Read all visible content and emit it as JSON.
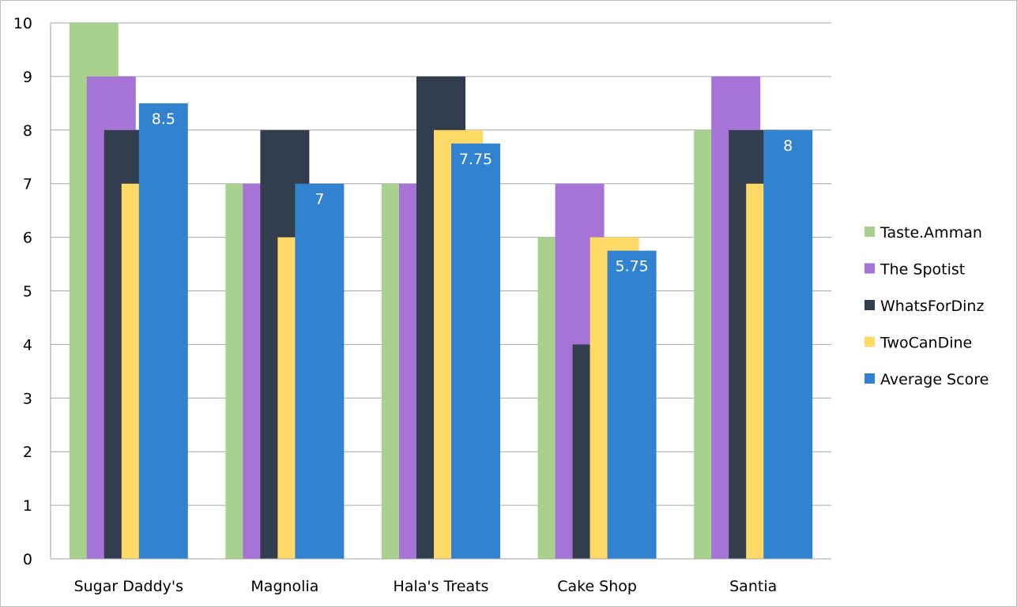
{
  "chart_data": {
    "type": "bar",
    "categories": [
      "Sugar Daddy's",
      "Magnolia",
      "Hala's Treats",
      "Cake Shop",
      "Santia"
    ],
    "series": [
      {
        "name": "Taste.Amman",
        "color": "#a9d18e",
        "values": [
          10,
          7,
          7,
          6,
          8
        ]
      },
      {
        "name": "The Spotist",
        "color": "#a574d6",
        "values": [
          9,
          7,
          7,
          7,
          9
        ]
      },
      {
        "name": "WhatsForDinz",
        "color": "#323d4d",
        "values": [
          8,
          8,
          9,
          4,
          8
        ]
      },
      {
        "name": "TwoCanDine",
        "color": "#ffd966",
        "values": [
          7,
          6,
          8,
          6,
          7
        ]
      },
      {
        "name": "Average Score",
        "color": "#3283cf",
        "values": [
          8.5,
          7,
          7.75,
          5.75,
          8
        ],
        "data_labels": [
          "8.5",
          "7",
          "7.75",
          "5.75",
          "8"
        ]
      }
    ],
    "ylim": [
      0,
      10
    ],
    "yticks": [
      "0",
      "1",
      "2",
      "3",
      "4",
      "5",
      "6",
      "7",
      "8",
      "9",
      "10"
    ],
    "grid": true,
    "legend_position": "right"
  }
}
